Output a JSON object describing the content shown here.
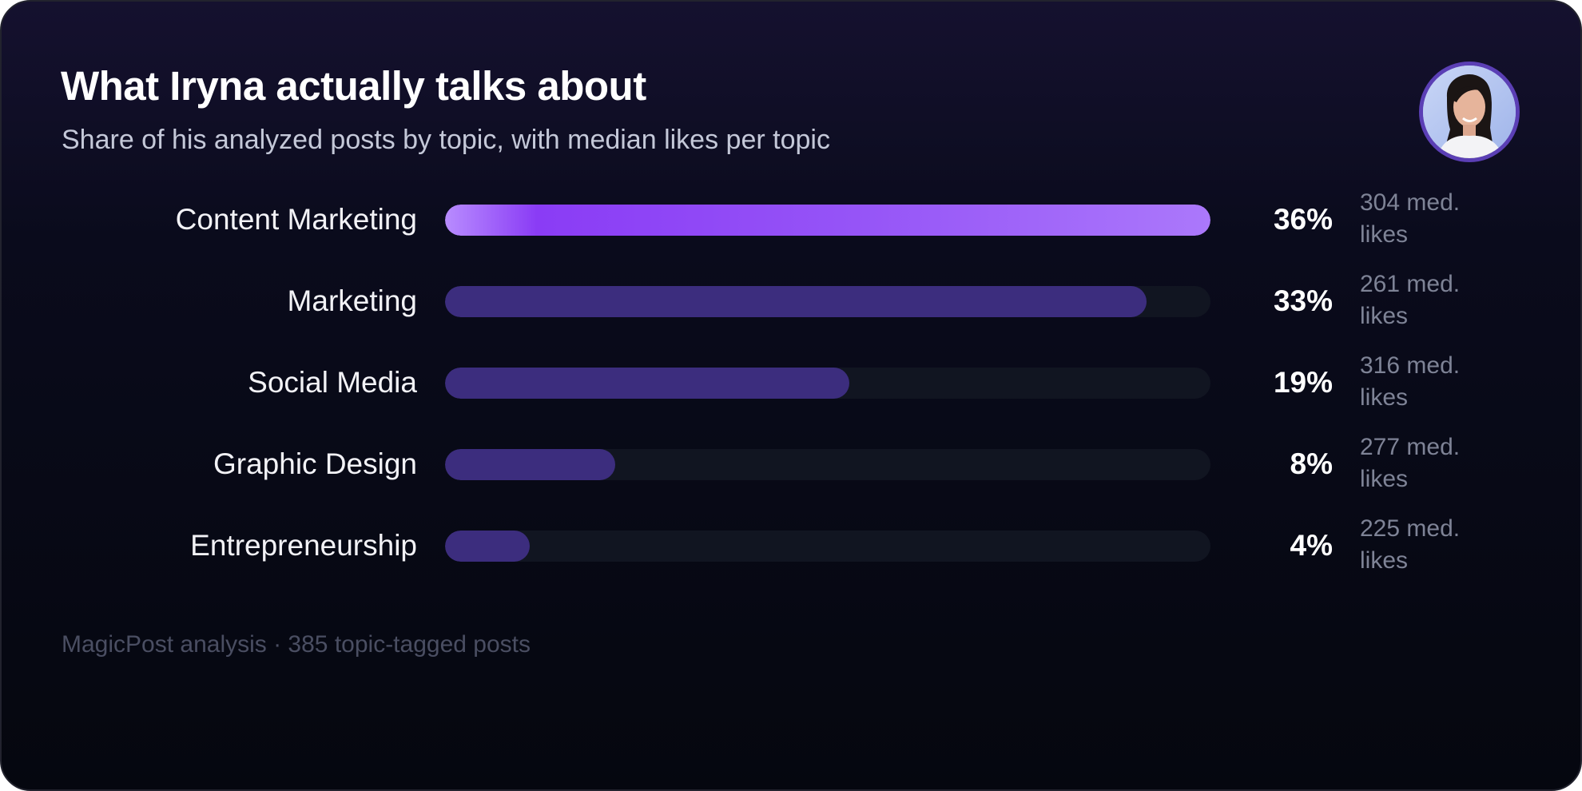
{
  "header": {
    "title": "What Iryna actually talks about",
    "subtitle": "Share of his analyzed posts by topic, with median likes per topic"
  },
  "avatar": {
    "icon": "profile-photo"
  },
  "colors": {
    "top_bar": "#9655f7",
    "bar": "#3c2d7e",
    "track": "#111521"
  },
  "chart_data": {
    "type": "bar",
    "orientation": "horizontal",
    "categories": [
      "Content Marketing",
      "Marketing",
      "Social Media",
      "Graphic Design",
      "Entrepreneurship"
    ],
    "values": [
      36,
      33,
      19,
      8,
      4
    ],
    "value_labels": [
      "36%",
      "33%",
      "19%",
      "8%",
      "4%"
    ],
    "median_likes": [
      304,
      261,
      316,
      277,
      225
    ],
    "median_likes_labels": [
      "304 med. likes",
      "261 med. likes",
      "316 med. likes",
      "277 med. likes",
      "225 med. likes"
    ],
    "title": "What Iryna actually talks about",
    "subtitle": "Share of his analyzed posts by topic, with median likes per topic",
    "xlim": [
      0,
      36
    ],
    "grid": false
  },
  "footer": {
    "note": "MagicPost analysis · 385 topic-tagged posts"
  }
}
